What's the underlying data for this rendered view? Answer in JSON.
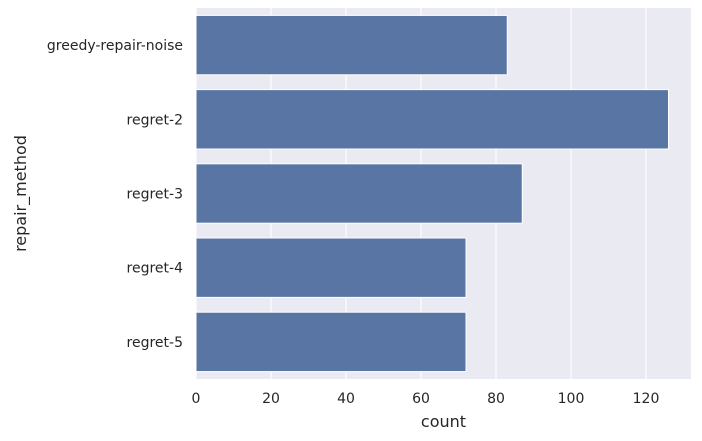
{
  "chart_data": {
    "type": "bar",
    "orientation": "horizontal",
    "categories": [
      "greedy-repair-noise",
      "regret-2",
      "regret-3",
      "regret-4",
      "regret-5"
    ],
    "values": [
      83,
      126,
      87,
      72,
      72
    ],
    "xlabel": "count",
    "ylabel": "repair_method",
    "xlim": [
      0,
      132
    ],
    "xticks": [
      0,
      20,
      40,
      60,
      80,
      100,
      120
    ],
    "grid": true,
    "colors": {
      "bar": "#5875a4",
      "plot_background": "#eaeaf2",
      "grid": "#ffffff",
      "text": "#262626"
    }
  }
}
